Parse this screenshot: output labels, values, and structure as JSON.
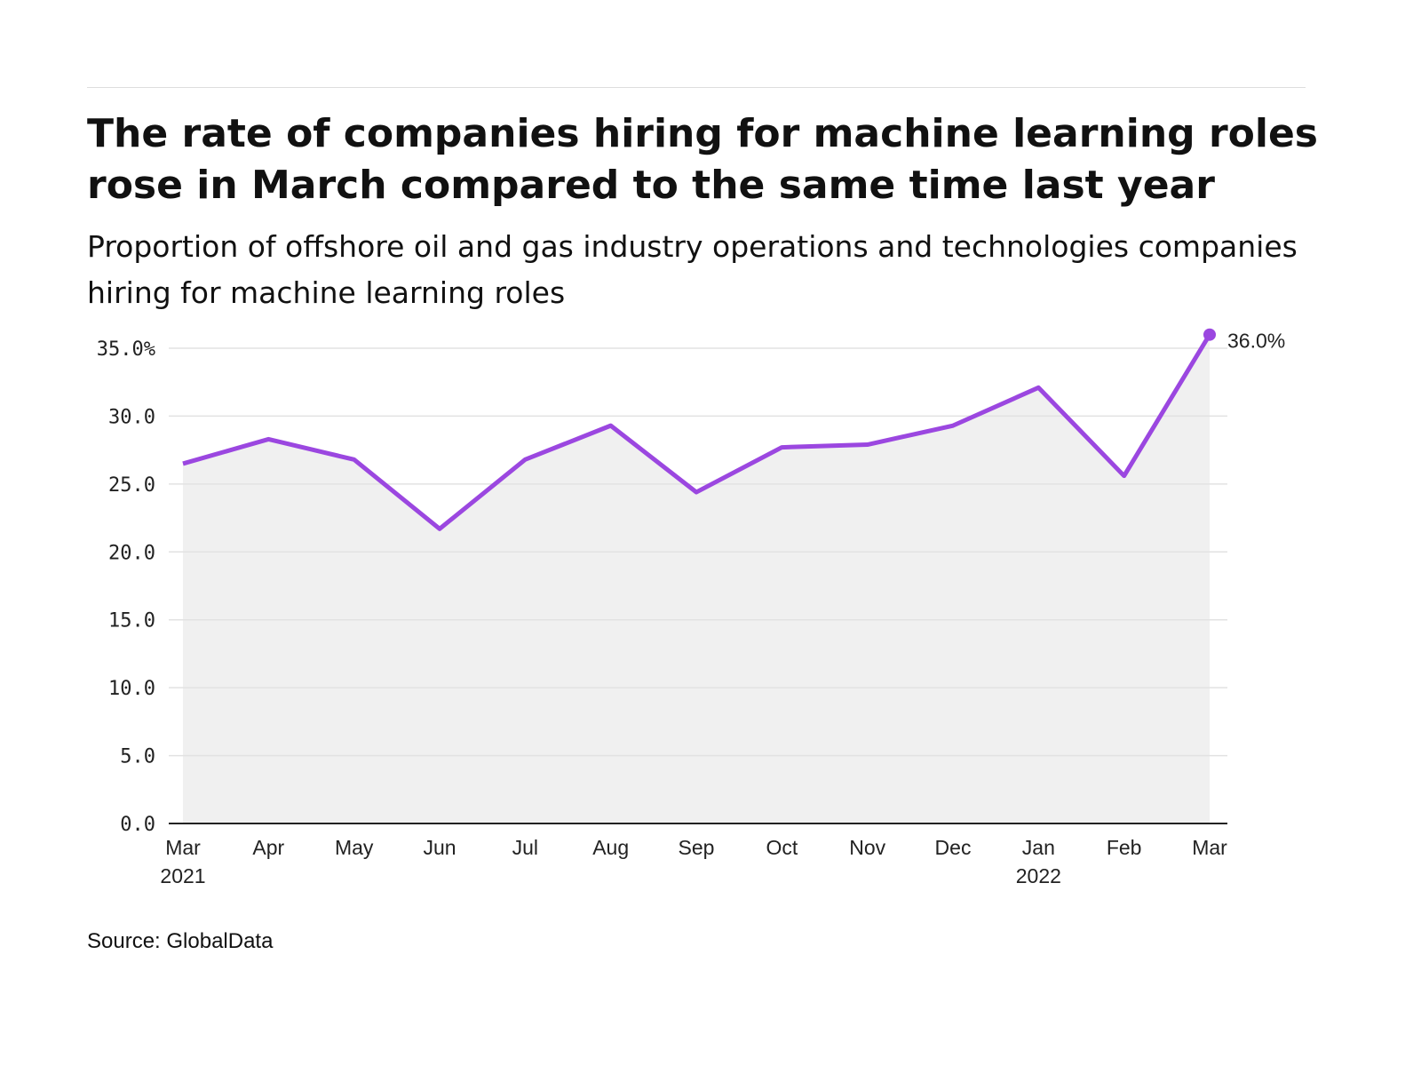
{
  "chart_data": {
    "type": "area",
    "title": "The rate of companies hiring for machine learning roles rose in March compared to the same time last year",
    "subtitle": "Proportion of offshore oil and gas industry operations and technologies companies hiring for machine learning roles",
    "categories": [
      "Mar",
      "Apr",
      "May",
      "Jun",
      "Jul",
      "Aug",
      "Sep",
      "Oct",
      "Nov",
      "Dec",
      "Jan",
      "Feb",
      "Mar"
    ],
    "year_labels": {
      "0": "2021",
      "10": "2022"
    },
    "series": [
      {
        "values": [
          26.5,
          28.3,
          26.8,
          21.7,
          26.8,
          29.3,
          24.4,
          27.7,
          27.9,
          29.3,
          32.1,
          25.6,
          36.0
        ]
      }
    ],
    "y_ticks": [
      "0.0",
      "5.0",
      "10.0",
      "15.0",
      "20.0",
      "25.0",
      "30.0",
      "35.0%"
    ],
    "ylim": [
      0,
      35
    ],
    "grid": true,
    "end_label": "36.0%",
    "colors": {
      "line": "#9b47e0",
      "area": "#f0f0f0",
      "grid": "#e2e2e2"
    }
  },
  "source": "Source: GlobalData"
}
